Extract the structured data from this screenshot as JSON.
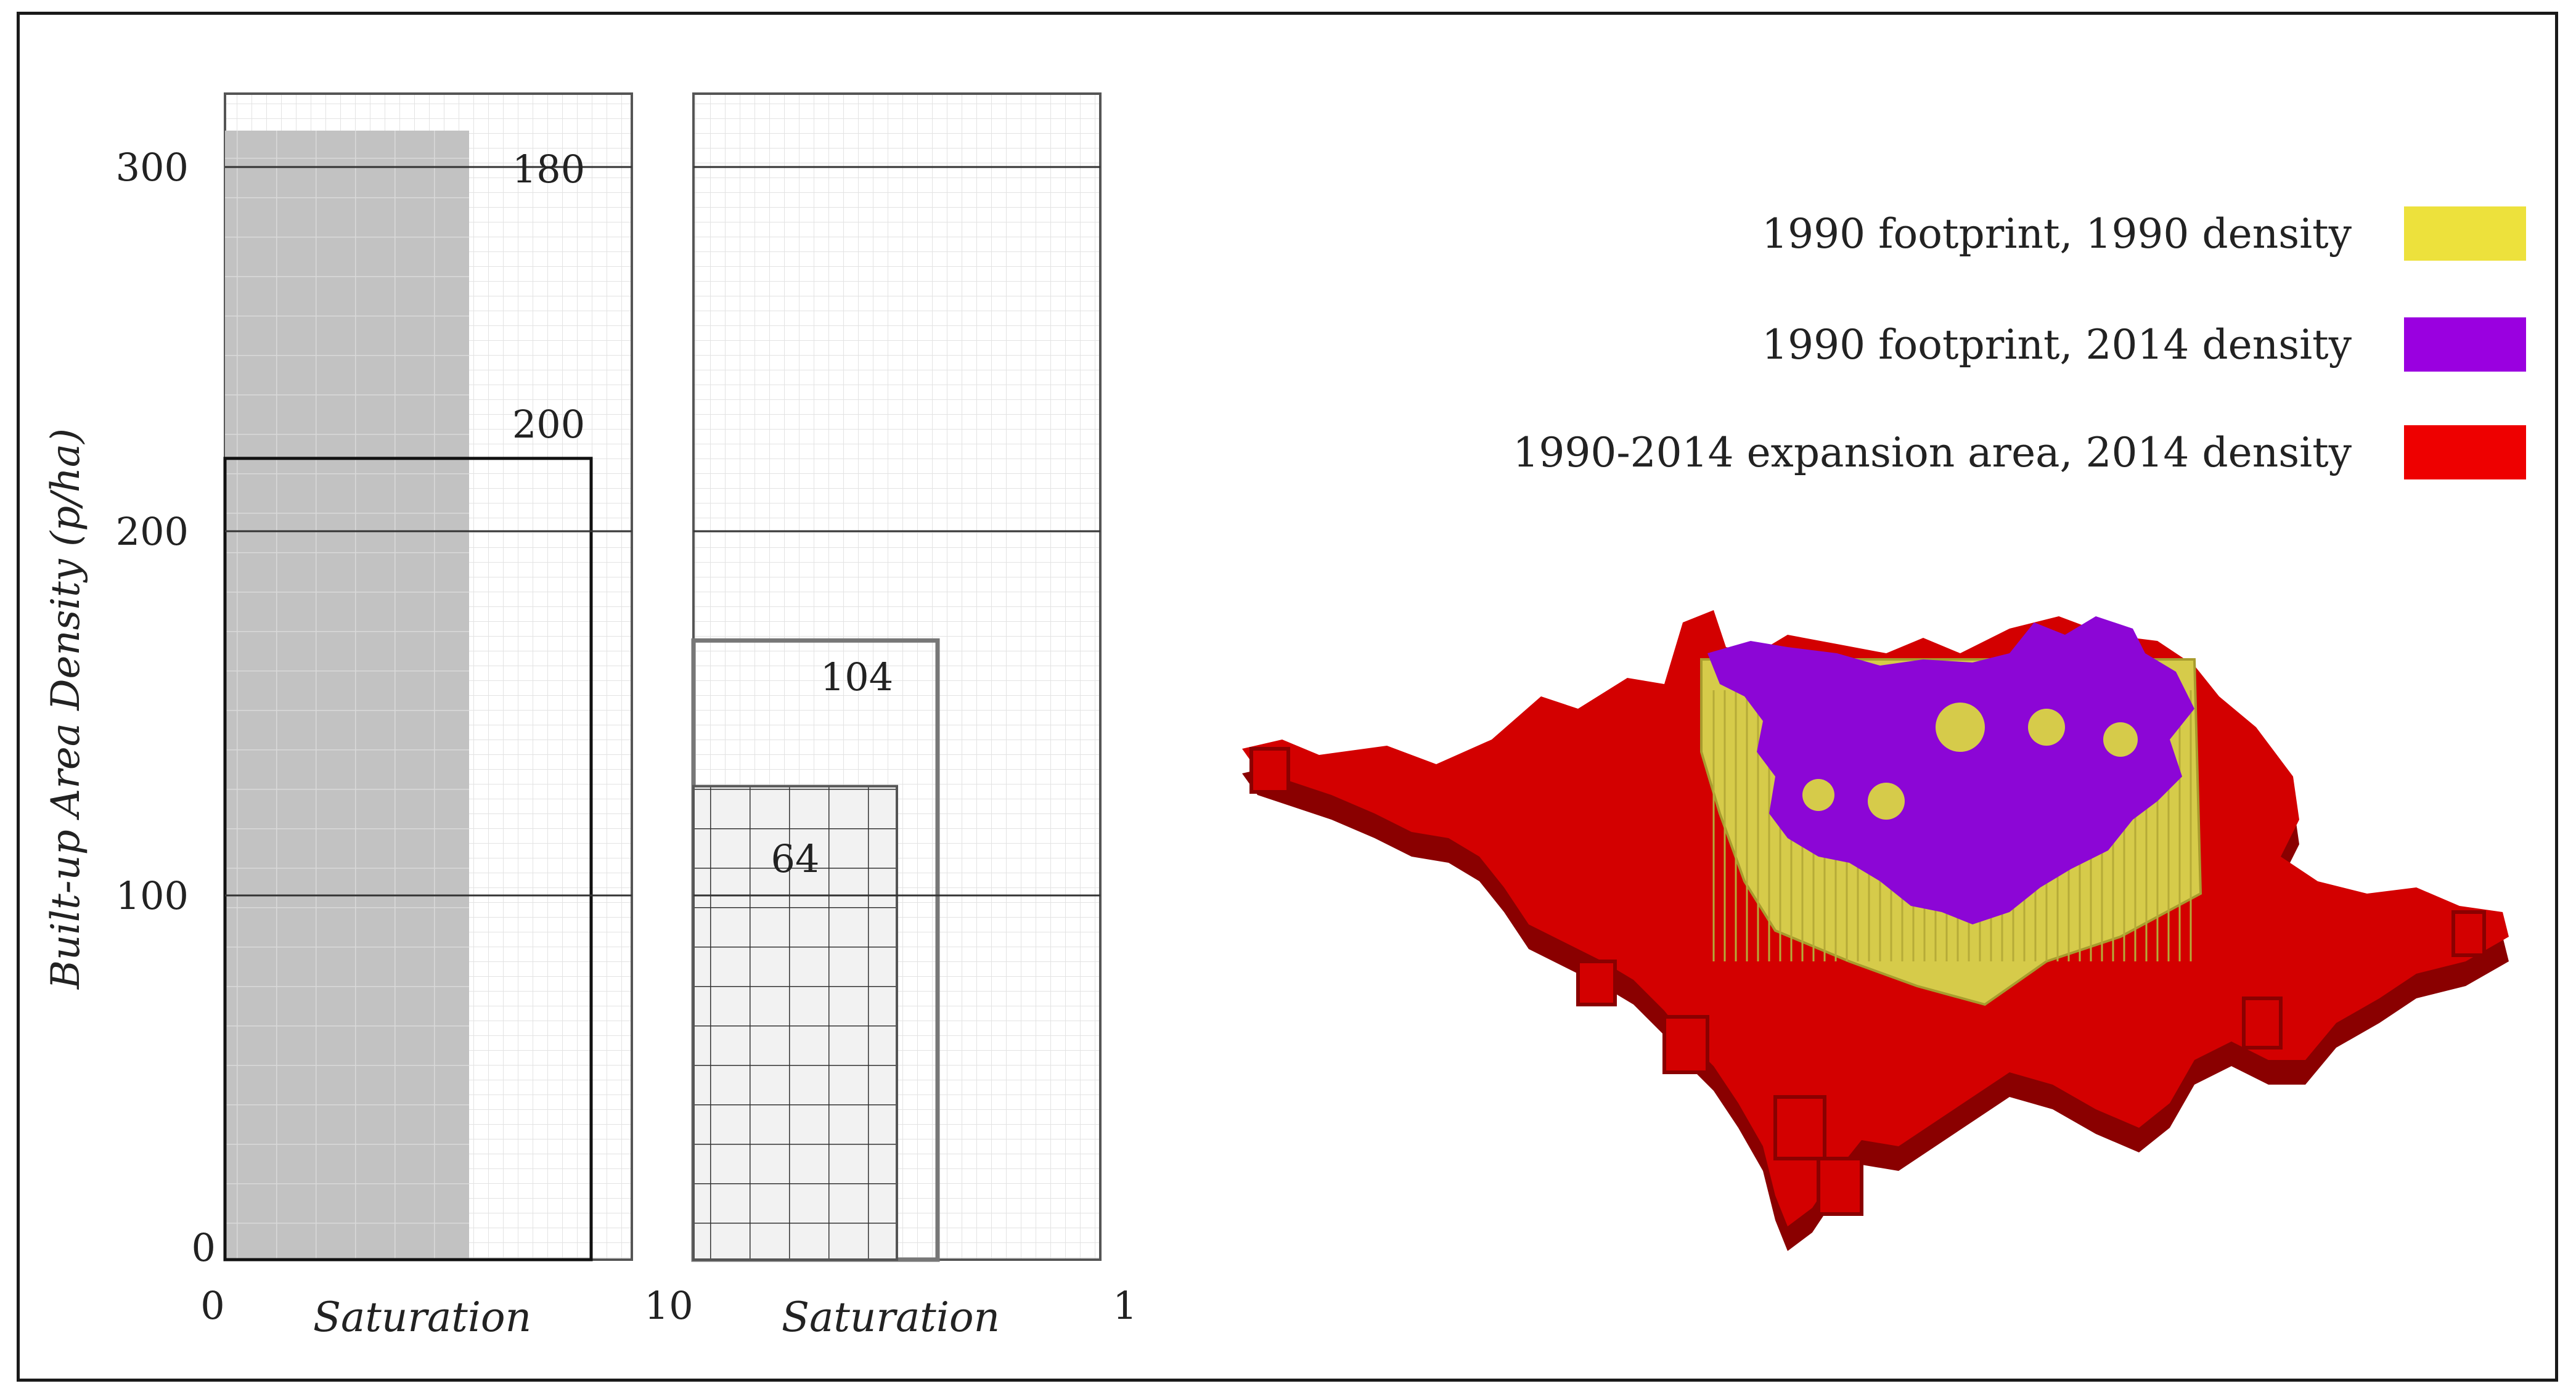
{
  "chart_data": [
    {
      "type": "bar",
      "panel": "left",
      "xlabel": "Saturation",
      "ylabel": "Built-up Area Density (p/ha)",
      "xlim": [
        0,
        1
      ],
      "ylim": [
        0,
        300
      ],
      "y_ticks": [
        "0",
        "100",
        "200",
        "300"
      ],
      "x_ticks": [
        "0",
        "1"
      ],
      "grid": true,
      "series": [
        {
          "fill": "shaded",
          "saturation": 0.6,
          "density": 310,
          "label": "180"
        },
        {
          "fill": "outline",
          "saturation": 0.9,
          "density": 220,
          "label": "200"
        }
      ]
    },
    {
      "type": "bar",
      "panel": "middle",
      "xlabel": "Saturation",
      "xlim": [
        0,
        1
      ],
      "ylim": [
        0,
        300
      ],
      "x_ticks": [
        "0",
        "1"
      ],
      "grid": true,
      "series": [
        {
          "fill": "outline",
          "saturation": 0.6,
          "density": 170,
          "label": "104"
        },
        {
          "fill": "hatched",
          "saturation": 0.5,
          "density": 130,
          "label": "64"
        }
      ]
    }
  ],
  "legend": {
    "items": [
      {
        "label": "1990 footprint, 1990 density",
        "color": "#ede13c"
      },
      {
        "label": "1990 footprint, 2014 density",
        "color": "#9a00e0"
      },
      {
        "label": "1990-2014 expansion area, 2014 density",
        "color": "#ee0000"
      }
    ]
  },
  "map3d": {
    "expansion_color": "#d30000",
    "expansion_side": "#8a0000",
    "core_side": "#d6cb4a",
    "core_top": "#8c06d6"
  }
}
